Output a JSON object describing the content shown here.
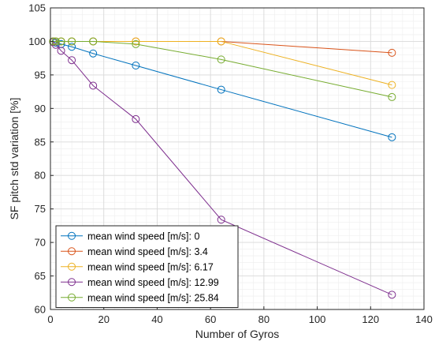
{
  "chart_data": {
    "type": "line",
    "title": "",
    "xlabel": "Number of Gyros",
    "ylabel": "SF pitch std variation [%]",
    "xlim": [
      0,
      140
    ],
    "ylim": [
      60,
      105
    ],
    "xticks": [
      0,
      20,
      40,
      60,
      80,
      100,
      120,
      140
    ],
    "yticks": [
      60,
      65,
      70,
      75,
      80,
      85,
      90,
      95,
      100,
      105
    ],
    "grid": "major and minor",
    "legend_position": "bottom-left",
    "x": [
      1,
      2,
      4,
      8,
      16,
      32,
      64,
      128
    ],
    "series": [
      {
        "name": "mean wind speed [m/s]: 0",
        "color": "#0072BD",
        "values": [
          100,
          99.8,
          99.6,
          99.2,
          98.2,
          96.4,
          92.8,
          85.7
        ]
      },
      {
        "name": "mean wind speed [m/s]: 3.4",
        "color": "#D95319",
        "values": [
          100,
          100,
          100,
          100,
          100,
          100,
          100,
          98.3
        ]
      },
      {
        "name": "mean wind speed [m/s]: 6.17",
        "color": "#EDB120",
        "values": [
          100,
          100,
          100,
          100,
          100,
          100,
          100,
          93.5
        ]
      },
      {
        "name": "mean wind speed [m/s]: 12.99",
        "color": "#7E2F8E",
        "values": [
          99.9,
          99.5,
          98.6,
          97.2,
          93.4,
          88.4,
          73.4,
          62.2
        ]
      },
      {
        "name": "mean wind speed [m/s]: 25.84",
        "color": "#77AC30",
        "values": [
          100,
          100,
          100,
          100,
          100,
          99.6,
          97.3,
          91.7
        ]
      }
    ]
  }
}
